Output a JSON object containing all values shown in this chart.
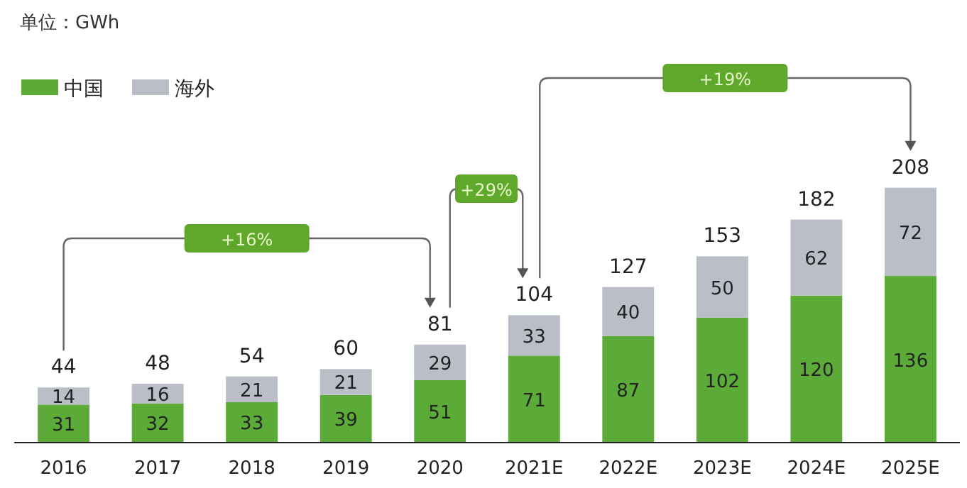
{
  "chart_data": {
    "type": "bar",
    "title": "单位：GWh",
    "stacked": true,
    "legend": "top left",
    "data_labels": true,
    "categories": [
      "2016",
      "2017",
      "2018",
      "2019",
      "2020",
      "2021E",
      "2022E",
      "2023E",
      "2024E",
      "2025E"
    ],
    "series": [
      {
        "name": "中国",
        "color": "#5cab38",
        "values": [
          31,
          32,
          33,
          39,
          51,
          71,
          87,
          102,
          120,
          136
        ]
      },
      {
        "name": "海外",
        "color": "#b9bec7",
        "values": [
          14,
          16,
          21,
          21,
          29,
          33,
          40,
          50,
          62,
          72
        ]
      }
    ],
    "totals": [
      "44",
      "48",
      "54",
      "60",
      "81",
      "104",
      "127",
      "153",
      "182",
      "208"
    ],
    "annotations": [
      "+16%",
      "+29%",
      "+19%"
    ]
  }
}
